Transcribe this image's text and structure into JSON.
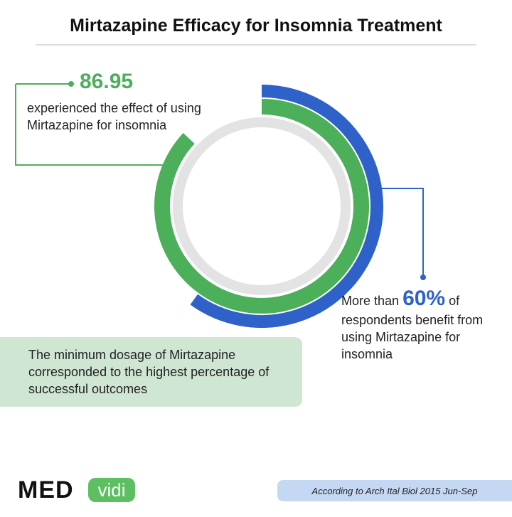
{
  "title": "Mirtazapine Efficacy for Insomnia Treatment",
  "stats": [
    {
      "value": 86.95,
      "text": "experienced the effect of using Mirtazapine for insomnia",
      "color": "#4caf5a"
    },
    {
      "prefix": "More than",
      "value": 60,
      "value_label": "60%",
      "suffix": "of",
      "text": "respondents benefit from using Mirtazapine for insomnia",
      "color": "#2f62c9"
    }
  ],
  "note": "The minimum dosage of Mirtazapine corresponded to the highest percentage of successful outcomes",
  "logo": {
    "left": "MED",
    "right": "vidi"
  },
  "source": "According to Arch Ital Biol 2015 Jun-Sep"
}
